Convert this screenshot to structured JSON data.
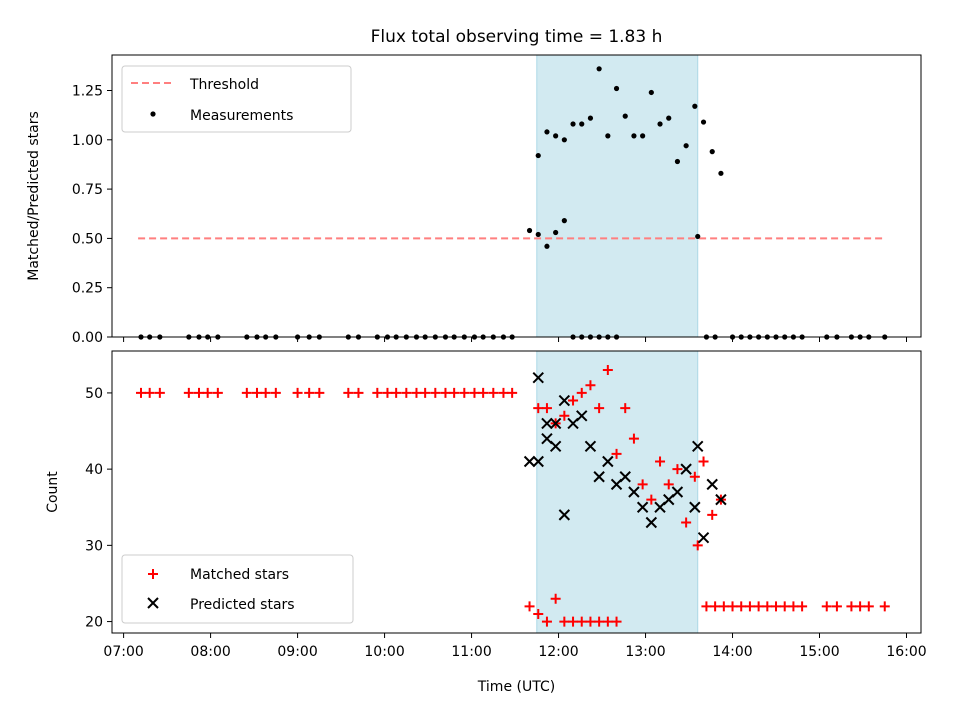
{
  "chart_data": [
    {
      "type": "scatter",
      "title": "Flux total observing time = 1.83 h",
      "ylabel": "Matched/Predicted stars",
      "xlabel": "",
      "xlim": [
        "06:52",
        "16:10"
      ],
      "ylim": [
        0,
        1.43
      ],
      "x_tick_labels": [
        "07:00",
        "08:00",
        "09:00",
        "10:00",
        "11:00",
        "12:00",
        "13:00",
        "14:00",
        "15:00",
        "16:00"
      ],
      "y_tick_labels": [
        "0.00",
        "0.25",
        "0.50",
        "0.75",
        "1.00",
        "1.25"
      ],
      "shaded_interval": {
        "start": "11:45",
        "end": "13:36",
        "color": "#add8e6"
      },
      "threshold": {
        "name": "Threshold",
        "y": 0.5,
        "x_start": "07:10",
        "x_end": "15:45",
        "color": "#ff7f7f",
        "style": "dashed"
      },
      "legend": {
        "placement": "top-left",
        "entries": [
          "Threshold",
          "Measurements"
        ]
      },
      "series": [
        {
          "name": "Measurements",
          "color": "#000000",
          "marker": "dot",
          "points": [
            [
              "07:12",
              0
            ],
            [
              "07:18",
              0
            ],
            [
              "07:25",
              0
            ],
            [
              "07:45",
              0
            ],
            [
              "07:52",
              0
            ],
            [
              "07:58",
              0
            ],
            [
              "08:05",
              0
            ],
            [
              "08:25",
              0
            ],
            [
              "08:32",
              0
            ],
            [
              "08:38",
              0
            ],
            [
              "08:45",
              0
            ],
            [
              "09:00",
              0
            ],
            [
              "09:08",
              0
            ],
            [
              "09:15",
              0
            ],
            [
              "09:35",
              0
            ],
            [
              "09:42",
              0
            ],
            [
              "09:55",
              0
            ],
            [
              "10:02",
              0
            ],
            [
              "10:08",
              0
            ],
            [
              "10:15",
              0
            ],
            [
              "10:22",
              0
            ],
            [
              "10:28",
              0
            ],
            [
              "10:35",
              0
            ],
            [
              "10:42",
              0
            ],
            [
              "10:48",
              0
            ],
            [
              "10:55",
              0
            ],
            [
              "11:02",
              0
            ],
            [
              "11:08",
              0
            ],
            [
              "11:15",
              0
            ],
            [
              "11:22",
              0
            ],
            [
              "11:28",
              0
            ],
            [
              "11:40",
              0.54
            ],
            [
              "11:46",
              0.52
            ],
            [
              "11:52",
              0.46
            ],
            [
              "11:58",
              0.53
            ],
            [
              "12:04",
              0.59
            ],
            [
              "12:10",
              0
            ],
            [
              "12:16",
              0
            ],
            [
              "12:22",
              0
            ],
            [
              "12:28",
              0
            ],
            [
              "12:34",
              0
            ],
            [
              "12:40",
              0
            ],
            [
              "11:46",
              0.92
            ],
            [
              "11:52",
              1.04
            ],
            [
              "11:58",
              1.02
            ],
            [
              "12:04",
              1.0
            ],
            [
              "12:10",
              1.08
            ],
            [
              "12:16",
              1.08
            ],
            [
              "12:22",
              1.11
            ],
            [
              "12:28",
              1.36
            ],
            [
              "12:34",
              1.02
            ],
            [
              "12:40",
              1.26
            ],
            [
              "12:46",
              1.12
            ],
            [
              "12:52",
              1.02
            ],
            [
              "12:58",
              1.02
            ],
            [
              "13:04",
              1.24
            ],
            [
              "13:10",
              1.08
            ],
            [
              "13:16",
              1.11
            ],
            [
              "13:22",
              0.89
            ],
            [
              "13:28",
              0.97
            ],
            [
              "13:34",
              1.17
            ],
            [
              "13:40",
              1.09
            ],
            [
              "13:46",
              0.94
            ],
            [
              "13:52",
              0.83
            ],
            [
              "13:36",
              0.51
            ],
            [
              "13:42",
              0
            ],
            [
              "13:48",
              0
            ],
            [
              "14:00",
              0
            ],
            [
              "14:06",
              0
            ],
            [
              "14:12",
              0
            ],
            [
              "14:18",
              0
            ],
            [
              "14:24",
              0
            ],
            [
              "14:30",
              0
            ],
            [
              "14:36",
              0
            ],
            [
              "14:42",
              0
            ],
            [
              "14:48",
              0
            ],
            [
              "15:05",
              0
            ],
            [
              "15:12",
              0
            ],
            [
              "15:22",
              0
            ],
            [
              "15:28",
              0
            ],
            [
              "15:34",
              0
            ],
            [
              "15:45",
              0
            ]
          ]
        }
      ]
    },
    {
      "type": "scatter",
      "title": "",
      "ylabel": "Count",
      "xlabel": "Time (UTC)",
      "xlim": [
        "06:52",
        "16:10"
      ],
      "ylim": [
        18.5,
        55.5
      ],
      "x_tick_labels": [
        "07:00",
        "08:00",
        "09:00",
        "10:00",
        "11:00",
        "12:00",
        "13:00",
        "14:00",
        "15:00",
        "16:00"
      ],
      "y_tick_labels": [
        "20",
        "30",
        "40",
        "50"
      ],
      "shaded_interval": {
        "start": "11:45",
        "end": "13:36",
        "color": "#add8e6"
      },
      "legend": {
        "placement": "bottom-left",
        "entries": [
          "Matched stars",
          "Predicted stars"
        ]
      },
      "series": [
        {
          "name": "Matched stars",
          "color": "#ff0000",
          "marker": "plus",
          "points": [
            [
              "07:12",
              50
            ],
            [
              "07:18",
              50
            ],
            [
              "07:25",
              50
            ],
            [
              "07:45",
              50
            ],
            [
              "07:52",
              50
            ],
            [
              "07:58",
              50
            ],
            [
              "08:05",
              50
            ],
            [
              "08:25",
              50
            ],
            [
              "08:32",
              50
            ],
            [
              "08:38",
              50
            ],
            [
              "08:45",
              50
            ],
            [
              "09:00",
              50
            ],
            [
              "09:08",
              50
            ],
            [
              "09:15",
              50
            ],
            [
              "09:35",
              50
            ],
            [
              "09:42",
              50
            ],
            [
              "09:55",
              50
            ],
            [
              "10:02",
              50
            ],
            [
              "10:08",
              50
            ],
            [
              "10:15",
              50
            ],
            [
              "10:22",
              50
            ],
            [
              "10:28",
              50
            ],
            [
              "10:35",
              50
            ],
            [
              "10:42",
              50
            ],
            [
              "10:48",
              50
            ],
            [
              "10:55",
              50
            ],
            [
              "11:02",
              50
            ],
            [
              "11:08",
              50
            ],
            [
              "11:15",
              50
            ],
            [
              "11:22",
              50
            ],
            [
              "11:28",
              50
            ],
            [
              "11:40",
              22
            ],
            [
              "11:46",
              21
            ],
            [
              "11:52",
              20
            ],
            [
              "11:58",
              23
            ],
            [
              "12:04",
              20
            ],
            [
              "12:10",
              20
            ],
            [
              "12:16",
              20
            ],
            [
              "12:22",
              20
            ],
            [
              "12:28",
              20
            ],
            [
              "12:34",
              20
            ],
            [
              "12:40",
              20
            ],
            [
              "11:46",
              48
            ],
            [
              "11:52",
              48
            ],
            [
              "11:58",
              46
            ],
            [
              "12:04",
              47
            ],
            [
              "12:10",
              49
            ],
            [
              "12:16",
              50
            ],
            [
              "12:22",
              51
            ],
            [
              "12:28",
              48
            ],
            [
              "12:34",
              53
            ],
            [
              "12:40",
              42
            ],
            [
              "12:46",
              48
            ],
            [
              "12:52",
              44
            ],
            [
              "12:58",
              38
            ],
            [
              "13:04",
              36
            ],
            [
              "13:10",
              41
            ],
            [
              "13:16",
              38
            ],
            [
              "13:22",
              40
            ],
            [
              "13:28",
              33
            ],
            [
              "13:34",
              39
            ],
            [
              "13:40",
              41
            ],
            [
              "13:46",
              34
            ],
            [
              "13:52",
              36
            ],
            [
              "13:36",
              30
            ],
            [
              "13:42",
              22
            ],
            [
              "13:48",
              22
            ],
            [
              "13:54",
              22
            ],
            [
              "14:00",
              22
            ],
            [
              "14:06",
              22
            ],
            [
              "14:12",
              22
            ],
            [
              "14:18",
              22
            ],
            [
              "14:24",
              22
            ],
            [
              "14:30",
              22
            ],
            [
              "14:36",
              22
            ],
            [
              "14:42",
              22
            ],
            [
              "14:48",
              22
            ],
            [
              "15:05",
              22
            ],
            [
              "15:12",
              22
            ],
            [
              "15:22",
              22
            ],
            [
              "15:28",
              22
            ],
            [
              "15:34",
              22
            ],
            [
              "15:45",
              22
            ]
          ]
        },
        {
          "name": "Predicted stars",
          "color": "#000000",
          "marker": "x",
          "points": [
            [
              "11:40",
              41
            ],
            [
              "11:46",
              41
            ],
            [
              "11:52",
              44
            ],
            [
              "11:58",
              43
            ],
            [
              "12:04",
              34
            ],
            [
              "11:46",
              52
            ],
            [
              "11:52",
              46
            ],
            [
              "11:58",
              46
            ],
            [
              "12:04",
              49
            ],
            [
              "12:10",
              46
            ],
            [
              "12:16",
              47
            ],
            [
              "12:22",
              43
            ],
            [
              "12:28",
              39
            ],
            [
              "12:34",
              41
            ],
            [
              "12:40",
              38
            ],
            [
              "12:46",
              39
            ],
            [
              "12:52",
              37
            ],
            [
              "12:58",
              35
            ],
            [
              "13:04",
              33
            ],
            [
              "13:10",
              35
            ],
            [
              "13:16",
              36
            ],
            [
              "13:22",
              37
            ],
            [
              "13:28",
              40
            ],
            [
              "13:34",
              35
            ],
            [
              "13:40",
              31
            ],
            [
              "13:46",
              38
            ],
            [
              "13:52",
              36
            ],
            [
              "13:36",
              43
            ]
          ]
        }
      ]
    }
  ]
}
